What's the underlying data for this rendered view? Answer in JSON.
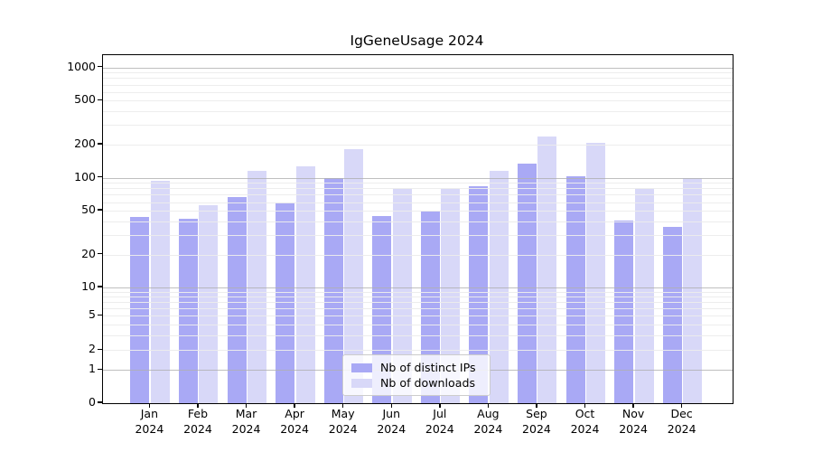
{
  "title": "IgGeneUsage 2024",
  "legend": {
    "items": [
      {
        "label": "Nb of distinct IPs",
        "color": "#a9a9f5"
      },
      {
        "label": "Nb of downloads",
        "color": "#d8d8f8"
      }
    ],
    "position": "lower center"
  },
  "y_axis": {
    "tick_labels": [
      "0",
      "1",
      "2",
      "5",
      "10",
      "20",
      "50",
      "100",
      "200",
      "500",
      "1000"
    ],
    "tick_values": [
      0,
      1,
      2,
      5,
      10,
      20,
      50,
      100,
      200,
      500,
      1000
    ]
  },
  "x_axis": {
    "months": [
      "Jan",
      "Feb",
      "Mar",
      "Apr",
      "May",
      "Jun",
      "Jul",
      "Aug",
      "Sep",
      "Oct",
      "Nov",
      "Dec"
    ],
    "year": "2024"
  },
  "chart_data": {
    "type": "bar",
    "title": "IgGeneUsage 2024",
    "categories": [
      "Jan 2024",
      "Feb 2024",
      "Mar 2024",
      "Apr 2024",
      "May 2024",
      "Jun 2024",
      "Jul 2024",
      "Aug 2024",
      "Sep 2024",
      "Oct 2024",
      "Nov 2024",
      "Dec 2024"
    ],
    "series": [
      {
        "name": "Nb of distinct IPs",
        "color": "#a9a9f5",
        "values": [
          44,
          42,
          66,
          60,
          100,
          45,
          49,
          84,
          133,
          103,
          41,
          36
        ]
      },
      {
        "name": "Nb of downloads",
        "color": "#d8d8f8",
        "values": [
          93,
          56,
          115,
          126,
          182,
          79,
          79,
          115,
          238,
          206,
          79,
          100
        ]
      }
    ],
    "yscale": "symlog",
    "yticks": [
      0,
      1,
      2,
      5,
      10,
      20,
      50,
      100,
      200,
      500,
      1000
    ],
    "major_grid_values": [
      1,
      10,
      100,
      1000
    ],
    "minor_grid_values": [
      2,
      3,
      4,
      5,
      6,
      7,
      8,
      9,
      20,
      30,
      40,
      50,
      60,
      70,
      80,
      90,
      200,
      300,
      400,
      500,
      600,
      700,
      800,
      900
    ],
    "ylim": [
      0,
      1300
    ],
    "grid": true,
    "legend_position": "lower center"
  }
}
